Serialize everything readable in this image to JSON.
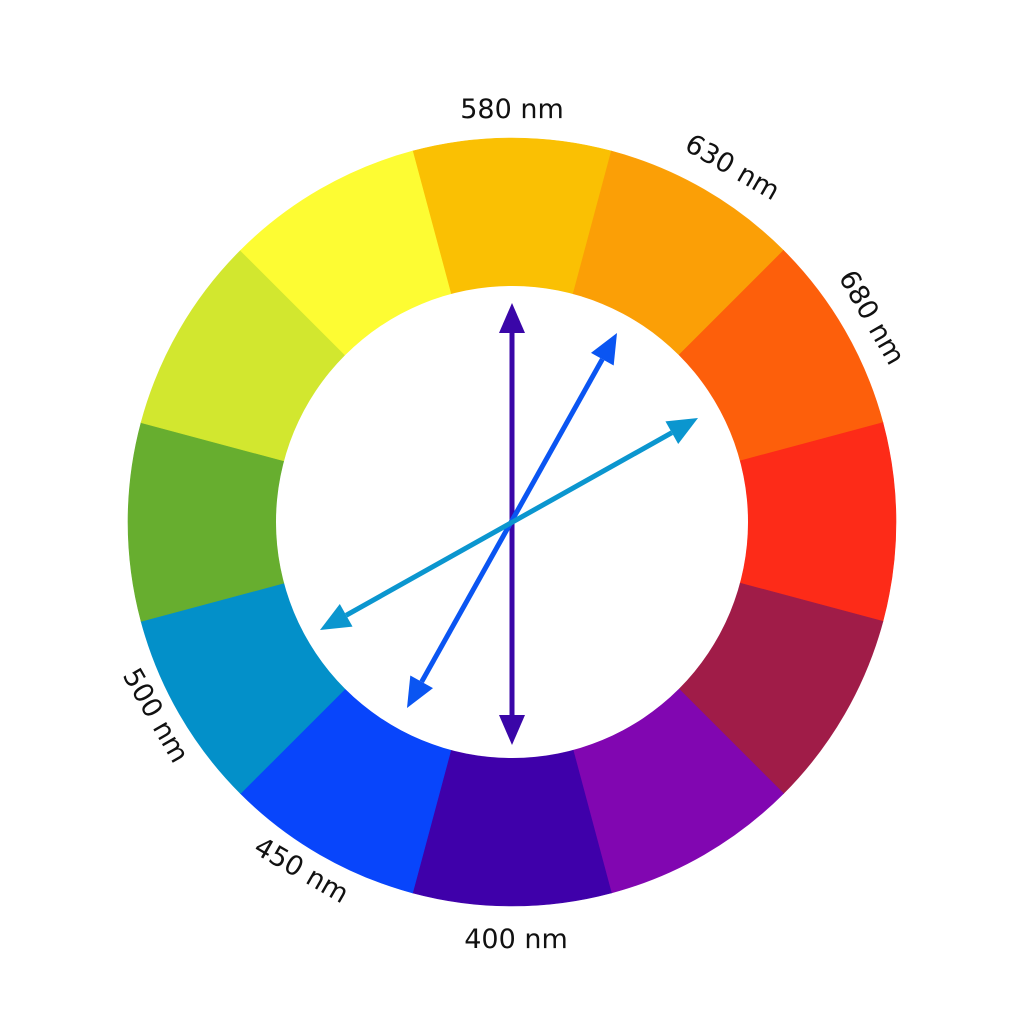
{
  "wheel": {
    "segments": [
      {
        "name": "yellow-orange",
        "color": "#FAC003"
      },
      {
        "name": "orange",
        "color": "#FB9F06"
      },
      {
        "name": "red-orange",
        "color": "#FD5F0B"
      },
      {
        "name": "red",
        "color": "#FD2B18"
      },
      {
        "name": "red-violet",
        "color": "#A01C48"
      },
      {
        "name": "violet",
        "color": "#8106B1"
      },
      {
        "name": "blue-violet",
        "color": "#3F00AA"
      },
      {
        "name": "blue",
        "color": "#0845FB"
      },
      {
        "name": "blue-green",
        "color": "#0390C9"
      },
      {
        "name": "green",
        "color": "#67AE2F"
      },
      {
        "name": "yellow-green",
        "color": "#D2E72F"
      },
      {
        "name": "yellow",
        "color": "#FDFC33"
      }
    ]
  },
  "labels": {
    "nm580": "580 nm",
    "nm630": "630 nm",
    "nm680": "680 nm",
    "nm500": "500 nm",
    "nm450": "450 nm",
    "nm400": "400 nm"
  },
  "arrows": [
    {
      "name": "arrow-580-400",
      "color": "#3A06A8"
    },
    {
      "name": "arrow-630-450",
      "color": "#0A55F2"
    },
    {
      "name": "arrow-680-500",
      "color": "#0B96CF"
    }
  ]
}
